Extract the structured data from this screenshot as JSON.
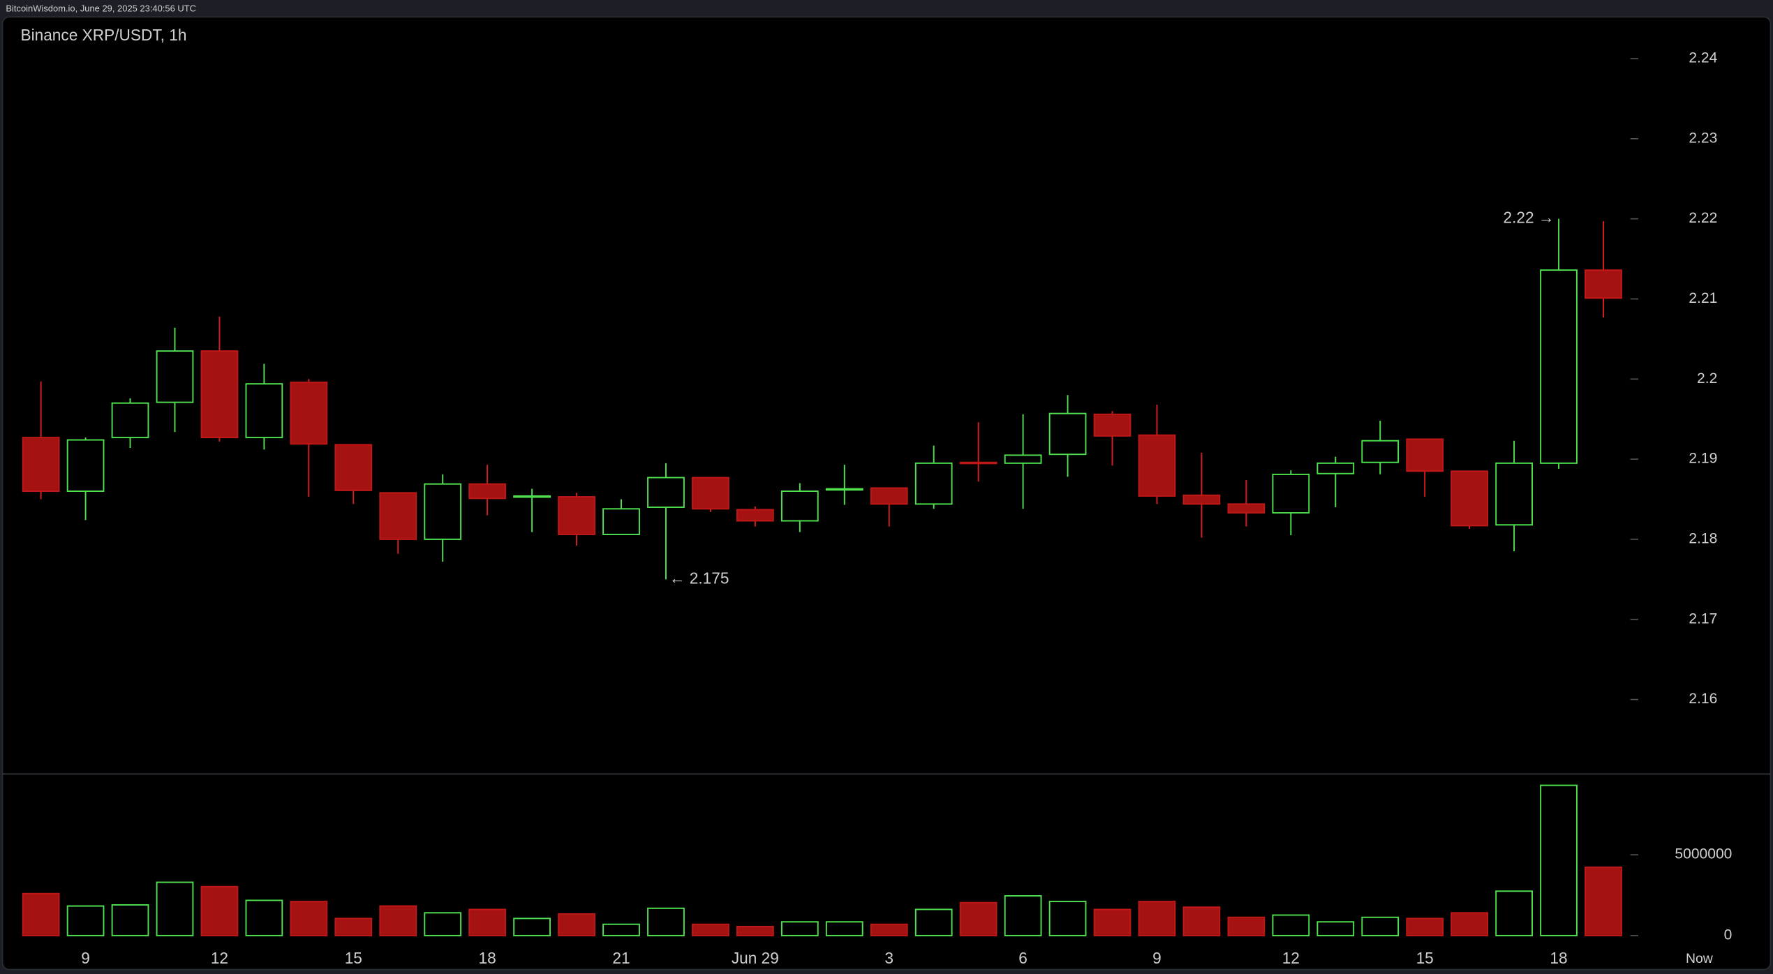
{
  "chart_data": {
    "type": "candlestick",
    "source": "BitcoinWisdom.io, June 29, 2025 23:40:56 UTC",
    "title": "Binance XRP/USDT, 1h",
    "categories": [
      null,
      "9",
      null,
      null,
      "12",
      null,
      null,
      "15",
      null,
      null,
      "18",
      null,
      null,
      "21",
      null,
      null,
      "Jun 29",
      null,
      null,
      "3",
      null,
      null,
      "6",
      null,
      null,
      "9",
      null,
      null,
      "12",
      null,
      null,
      "15",
      null,
      null,
      "18",
      null
    ],
    "end_label": "Now",
    "open": [
      2.1927,
      2.186,
      2.1927,
      2.1971,
      2.2035,
      2.1927,
      2.1996,
      2.1918,
      2.1858,
      2.18,
      2.1869,
      2.1853,
      2.1853,
      2.1806,
      2.184,
      2.1877,
      2.1837,
      2.1823,
      2.1862,
      2.1864,
      2.1844,
      2.1896,
      2.1895,
      2.1906,
      2.1956,
      2.193,
      2.1855,
      2.1844,
      2.1833,
      2.1882,
      2.1896,
      2.1925,
      2.1885,
      2.1818,
      2.1895,
      2.2136
    ],
    "high": [
      2.1997,
      2.1927,
      2.1976,
      2.2064,
      2.2078,
      2.2019,
      2.2,
      2.1918,
      2.1858,
      2.1881,
      2.1893,
      2.1863,
      2.1858,
      2.185,
      2.1895,
      2.1877,
      2.1841,
      2.187,
      2.1893,
      2.1864,
      2.1917,
      2.1946,
      2.1956,
      2.198,
      2.196,
      2.1968,
      2.1908,
      2.1874,
      2.1886,
      2.1903,
      2.1948,
      2.1925,
      2.1885,
      2.1923,
      2.22,
      2.2197
    ],
    "low": [
      2.185,
      2.1824,
      2.1914,
      2.1934,
      2.1922,
      2.1912,
      2.1853,
      2.1844,
      2.1782,
      2.1772,
      2.183,
      2.1809,
      2.1792,
      2.1806,
      2.175,
      2.1834,
      2.1816,
      2.1809,
      2.1843,
      2.1816,
      2.1838,
      2.1872,
      2.1838,
      2.1878,
      2.1892,
      2.1844,
      2.1802,
      2.1816,
      2.1805,
      2.184,
      2.1881,
      2.1853,
      2.1813,
      2.1785,
      2.1888,
      2.2077
    ],
    "close": [
      2.186,
      2.1924,
      2.197,
      2.2035,
      2.1927,
      2.1994,
      2.1919,
      2.1861,
      2.18,
      2.1869,
      2.1851,
      2.1854,
      2.1806,
      2.1838,
      2.1877,
      2.1838,
      2.1823,
      2.186,
      2.1863,
      2.1844,
      2.1895,
      2.1895,
      2.1905,
      2.1957,
      2.1929,
      2.1854,
      2.1844,
      2.1833,
      2.1881,
      2.1895,
      2.1923,
      2.1885,
      2.1817,
      2.1895,
      2.2136,
      2.2101
    ],
    "ylim": [
      2.1507,
      2.2452
    ],
    "yticks": [
      2.16,
      2.17,
      2.18,
      2.19,
      2.2,
      2.21,
      2.22,
      2.23,
      2.24
    ],
    "up_color": "#4fe04f",
    "down_color": "#a51212",
    "annotations": [
      {
        "label": "2.22 →",
        "value": 2.22
      },
      {
        "label": "← 2.175",
        "value": 2.175
      }
    ],
    "volume": {
      "values": [
        2600000,
        1830000,
        1900000,
        3300000,
        3030000,
        2180000,
        2110000,
        1060000,
        1830000,
        1410000,
        1620000,
        1060000,
        1340000,
        700000,
        1690000,
        700000,
        560000,
        850000,
        850000,
        700000,
        1620000,
        2040000,
        2460000,
        2110000,
        1620000,
        2110000,
        1760000,
        1130000,
        1270000,
        850000,
        1130000,
        1060000,
        1410000,
        2750000,
        9300000,
        4230000
      ],
      "ylim": [
        0,
        10000000
      ],
      "yticks": [
        0,
        5000000
      ]
    }
  }
}
